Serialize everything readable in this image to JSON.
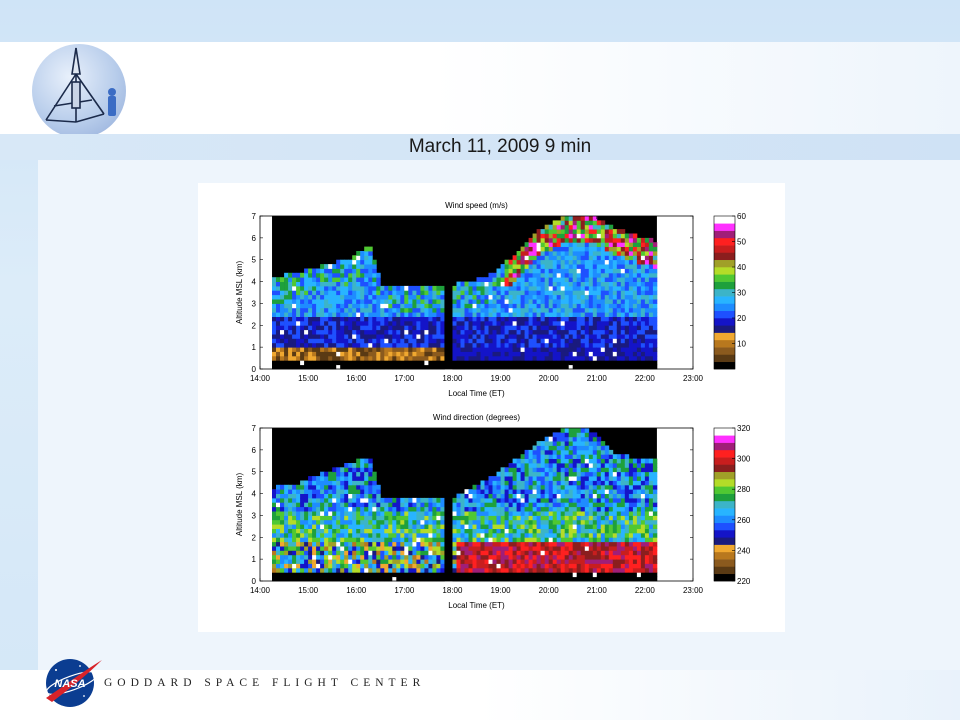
{
  "slide": {
    "title": "March 11, 2009 9 min",
    "footer": "GODDARD SPACE FLIGHT CENTER",
    "logo_text": "NASA"
  },
  "colors": {
    "no_data": "#000000",
    "missing": "#ffffff",
    "title_text": "#1a1a1a"
  },
  "chart_data": [
    {
      "type": "heatmap",
      "title": "Wind speed (m/s)",
      "xlabel": "Local Time (ET)",
      "ylabel": "Altitude MSL (km)",
      "x_ticks": [
        "14:00",
        "15:00",
        "16:00",
        "17:00",
        "18:00",
        "19:00",
        "20:00",
        "21:00",
        "22:00",
        "23:00"
      ],
      "y_ticks": [
        "0",
        "1",
        "2",
        "3",
        "4",
        "5",
        "6",
        "7"
      ],
      "xlim": [
        "14:00",
        "23:00"
      ],
      "ylim": [
        0,
        7
      ],
      "data_start": "14:15",
      "data_end": "22:15",
      "gap": [
        "17:50",
        "18:00"
      ],
      "colorbar": {
        "ticks": [
          "10",
          "20",
          "30",
          "40",
          "50",
          "60"
        ],
        "range": [
          0,
          60
        ],
        "colors": [
          "#000000",
          "#5a3a14",
          "#8b5a1e",
          "#b8781e",
          "#f0a830",
          "#1a1a7e",
          "#1414c8",
          "#1e50ff",
          "#1e8cff",
          "#28b4ff",
          "#3cb4c8",
          "#1ea03c",
          "#50c832",
          "#b4dc28",
          "#a0a028",
          "#8b1e1e",
          "#c81e1e",
          "#ff2020",
          "#a01e78",
          "#ff30ff",
          "#ffffff"
        ]
      },
      "profile": [
        {
          "t": "14:15",
          "top": 4.1
        },
        {
          "t": "14:40",
          "top": 4.3
        },
        {
          "t": "15:10",
          "top": 4.6
        },
        {
          "t": "15:50",
          "top": 5.0
        },
        {
          "t": "16:15",
          "top": 5.6
        },
        {
          "t": "16:30",
          "top": 3.8
        },
        {
          "t": "17:50",
          "top": 3.7
        },
        {
          "t": "18:00",
          "top": 3.8
        },
        {
          "t": "18:40",
          "top": 4.1
        },
        {
          "t": "19:20",
          "top": 5.3
        },
        {
          "t": "19:50",
          "top": 6.4
        },
        {
          "t": "20:20",
          "top": 7.0
        },
        {
          "t": "20:50",
          "top": 7.0
        },
        {
          "t": "21:20",
          "top": 6.4
        },
        {
          "t": "21:50",
          "top": 6.0
        },
        {
          "t": "22:15",
          "top": 5.7
        }
      ]
    },
    {
      "type": "heatmap",
      "title": "Wind direction (degrees)",
      "xlabel": "Local Time (ET)",
      "ylabel": "Altitude MSL (km)",
      "x_ticks": [
        "14:00",
        "15:00",
        "16:00",
        "17:00",
        "18:00",
        "19:00",
        "20:00",
        "21:00",
        "22:00",
        "23:00"
      ],
      "y_ticks": [
        "0",
        "1",
        "2",
        "3",
        "4",
        "5",
        "6",
        "7"
      ],
      "xlim": [
        "14:00",
        "23:00"
      ],
      "ylim": [
        0,
        7
      ],
      "data_start": "14:15",
      "data_end": "22:15",
      "gap": [
        "17:50",
        "18:00"
      ],
      "colorbar": {
        "ticks": [
          "220",
          "240",
          "260",
          "280",
          "300",
          "320"
        ],
        "range": [
          220,
          320
        ],
        "colors": [
          "#000000",
          "#5a3a14",
          "#8b5a1e",
          "#b8781e",
          "#f0a830",
          "#1a1a7e",
          "#1414c8",
          "#1e50ff",
          "#1e8cff",
          "#28b4ff",
          "#3cb4c8",
          "#1ea03c",
          "#50c832",
          "#b4dc28",
          "#a0a028",
          "#8b1e1e",
          "#c81e1e",
          "#ff2020",
          "#a01e78",
          "#ff30ff",
          "#ffffff"
        ]
      },
      "profile": [
        {
          "t": "14:15",
          "top": 4.2
        },
        {
          "t": "14:40",
          "top": 4.3
        },
        {
          "t": "15:10",
          "top": 4.8
        },
        {
          "t": "15:50",
          "top": 5.3
        },
        {
          "t": "16:15",
          "top": 5.6
        },
        {
          "t": "16:30",
          "top": 3.8
        },
        {
          "t": "17:50",
          "top": 3.7
        },
        {
          "t": "18:00",
          "top": 3.8
        },
        {
          "t": "18:40",
          "top": 4.5
        },
        {
          "t": "19:20",
          "top": 5.6
        },
        {
          "t": "19:50",
          "top": 6.4
        },
        {
          "t": "20:20",
          "top": 7.0
        },
        {
          "t": "20:50",
          "top": 6.8
        },
        {
          "t": "21:20",
          "top": 5.8
        },
        {
          "t": "21:50",
          "top": 5.5
        },
        {
          "t": "22:15",
          "top": 5.6
        }
      ]
    }
  ]
}
